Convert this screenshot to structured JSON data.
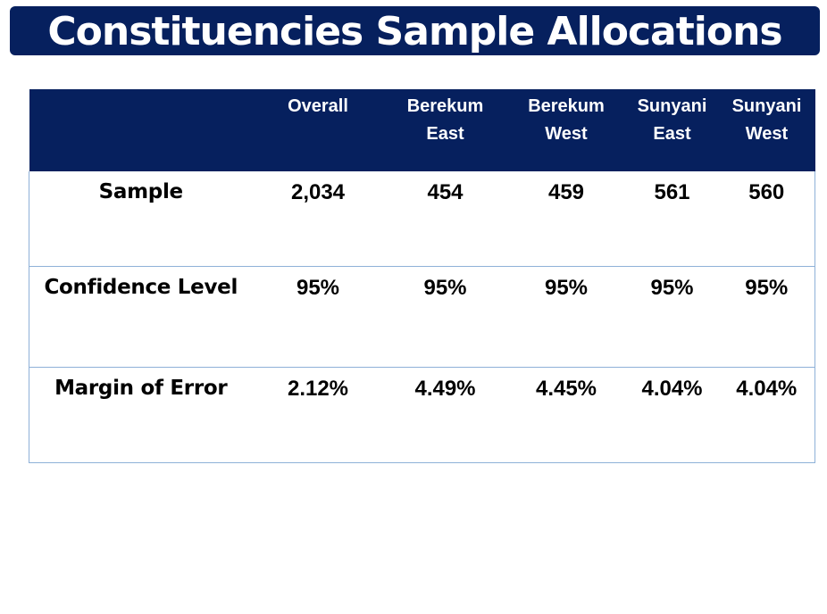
{
  "title": "Constituencies Sample Allocations",
  "table": {
    "columns": [
      {
        "key": "overall",
        "line1": "Overall",
        "line2": ""
      },
      {
        "key": "berekum_east",
        "line1": "Berekum",
        "line2": "East"
      },
      {
        "key": "berekum_west",
        "line1": "Berekum",
        "line2": "West"
      },
      {
        "key": "sunyani_east",
        "line1": "Sunyani",
        "line2": "East"
      },
      {
        "key": "sunyani_west",
        "line1": "Sunyani",
        "line2": "West"
      }
    ],
    "rows": [
      {
        "label": "Sample",
        "values": [
          "2,034",
          "454",
          "459",
          "561",
          "560"
        ]
      },
      {
        "label": "Confidence Level",
        "values": [
          "95%",
          "95%",
          "95%",
          "95%",
          "95%"
        ]
      },
      {
        "label": "Margin of Error",
        "values": [
          "2.12%",
          "4.49%",
          "4.45%",
          "4.04%",
          "4.04%"
        ]
      }
    ]
  },
  "colors": {
    "header_background": "#06205e",
    "header_text": "#ffffff",
    "border": "#8eb1d8"
  }
}
